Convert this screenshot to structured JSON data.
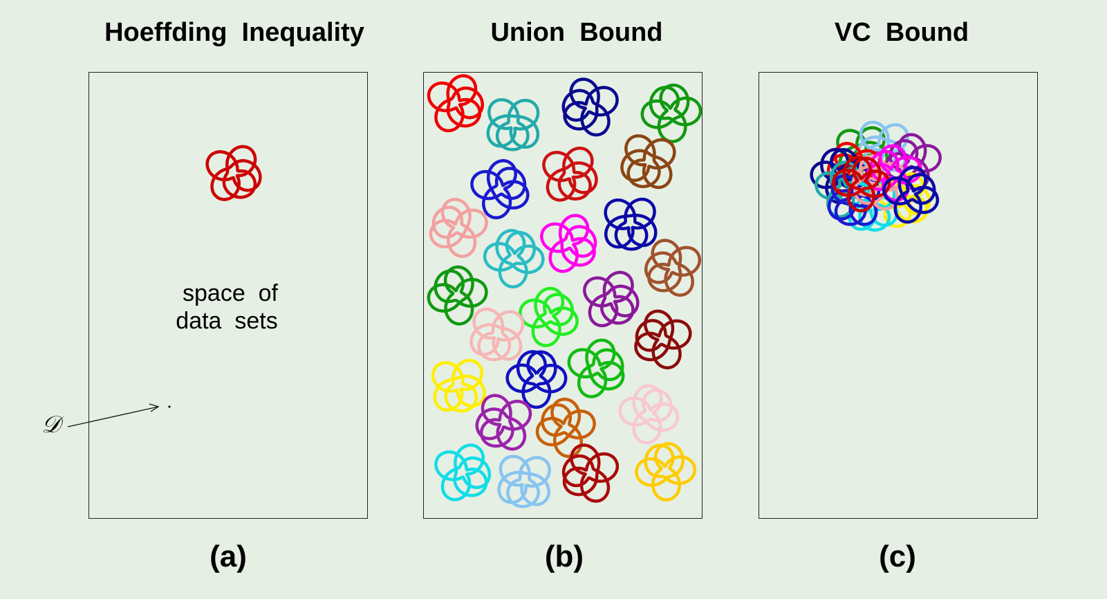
{
  "panels": [
    {
      "title": "Hoeffding  Inequality",
      "caption": "(a)",
      "text_line1": "space  of",
      "text_line2": "data  sets",
      "data_set_label": "𝒟",
      "blob_colors": [
        "#cc0000"
      ]
    },
    {
      "title": "Union  Bound",
      "caption": "(b)",
      "blob_colors": [
        "#ee0000",
        "#22aaaa",
        "#0a0a90",
        "#119911",
        "#1a1ad0",
        "#cc1111",
        "#8b4513",
        "#f4a0a0",
        "#2abcc4",
        "#ff00ee",
        "#0a0aa8",
        "#a0522d",
        "#119911",
        "#22ee22",
        "#8b1a9b",
        "#f6b6b6",
        "#8b0b0b",
        "#1010c0",
        "#11bb11",
        "#ffee00",
        "#9b22aa",
        "#c8600a",
        "#f8c8d0",
        "#11dde6",
        "#88c4f0",
        "#aa0a0a",
        "#ffcc00"
      ]
    },
    {
      "title": "VC  Bound",
      "caption": "(c)",
      "blob_colors": [
        "#119911",
        "#88c4f0",
        "#ee0000",
        "#8b1a9b",
        "#0a0a90",
        "#22aaaa",
        "#ffee00",
        "#11dde6",
        "#1a1ad0",
        "#f4a0a0",
        "#ff00ee",
        "#cc0000",
        "#0a0aa8"
      ]
    }
  ]
}
